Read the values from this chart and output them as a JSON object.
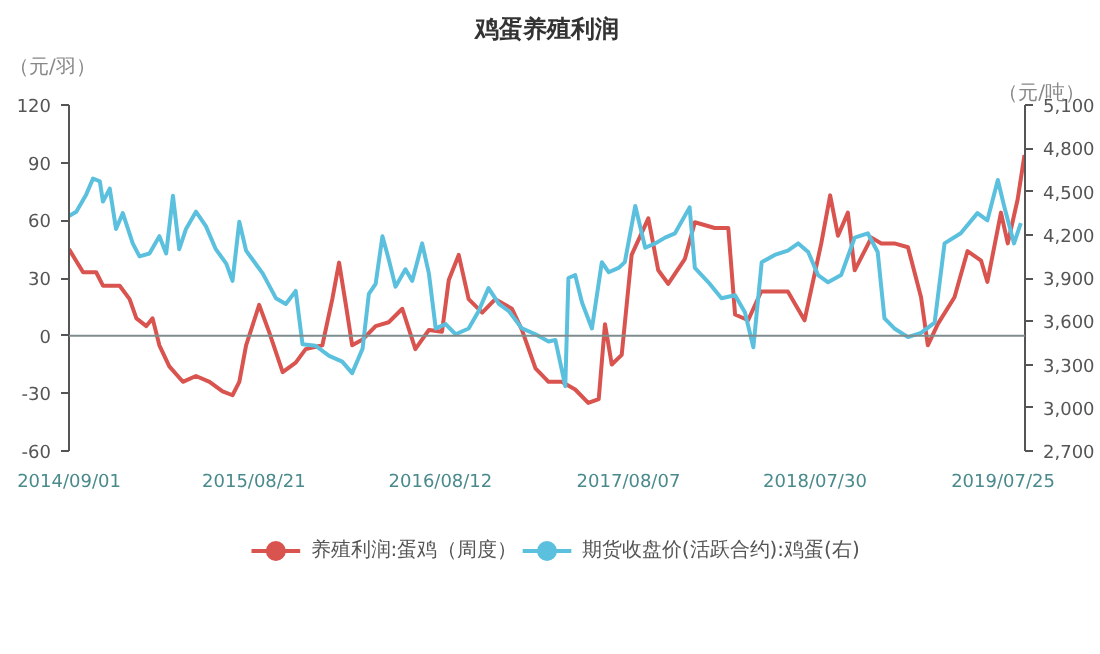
{
  "chart_data": {
    "type": "line",
    "title": "鸡蛋养殖利润",
    "ylabel": "（元/羽）",
    "y2label": "（元/吨）",
    "xlim": [
      "2014-09-01",
      "2019-09-05"
    ],
    "xticks": [
      {
        "value": "2014-09-01",
        "label": "2014/09/01"
      },
      {
        "value": "2015-08-21",
        "label": "2015/08/21"
      },
      {
        "value": "2016-08-12",
        "label": "2016/08/12"
      },
      {
        "value": "2017-08-07",
        "label": "2017/08/07"
      },
      {
        "value": "2018-07-30",
        "label": "2018/07/30"
      },
      {
        "value": "2019-07-25",
        "label": "2019/07/25"
      }
    ],
    "ylim": [
      -60,
      120
    ],
    "yticks": [
      -60,
      -30,
      0,
      30,
      60,
      90,
      120
    ],
    "y2lim": [
      2700,
      5100
    ],
    "y2ticks": [
      {
        "value": 2700,
        "label": "2,700"
      },
      {
        "value": 3000,
        "label": "3,000"
      },
      {
        "value": 3300,
        "label": "3,300"
      },
      {
        "value": 3600,
        "label": "3,600"
      },
      {
        "value": 3900,
        "label": "3,900"
      },
      {
        "value": 4200,
        "label": "4,200"
      },
      {
        "value": 4500,
        "label": "4,500"
      },
      {
        "value": 4800,
        "label": "4,800"
      },
      {
        "value": 5100,
        "label": "5,100"
      }
    ],
    "ref_lines": [
      {
        "axis": "y",
        "value": 0,
        "color": "#7f8c8d"
      }
    ],
    "legend": "bottom",
    "grid": false,
    "series": [
      {
        "name": "养殖利润:蛋鸡（周度）",
        "color": "#d9534f",
        "x": [
          "2014-09-01",
          "2014-09-28",
          "2014-10-23",
          "2014-11-05",
          "2014-12-07",
          "2014-12-26",
          "2015-01-08",
          "2015-01-27",
          "2015-02-08",
          "2015-02-21",
          "2015-03-12",
          "2015-04-07",
          "2015-05-02",
          "2015-05-28",
          "2015-06-22",
          "2015-07-11",
          "2015-07-24",
          "2015-08-06",
          "2015-08-31",
          "2015-09-19",
          "2015-10-15",
          "2015-11-09",
          "2015-11-28",
          "2015-12-30",
          "2016-01-18",
          "2016-01-31",
          "2016-02-13",
          "2016-02-25",
          "2016-03-16",
          "2016-04-10",
          "2016-05-05",
          "2016-05-31",
          "2016-06-25",
          "2016-07-21",
          "2016-08-15",
          "2016-08-28",
          "2016-09-16",
          "2016-10-05",
          "2016-10-31",
          "2016-11-25",
          "2016-12-27",
          "2017-01-15",
          "2017-02-10",
          "2017-03-07",
          "2017-04-01",
          "2017-04-27",
          "2017-05-22",
          "2017-06-11",
          "2017-06-23",
          "2017-07-06",
          "2017-07-25",
          "2017-08-13",
          "2017-09-14",
          "2017-10-03",
          "2017-10-22",
          "2017-11-23",
          "2017-12-12",
          "2018-01-19",
          "2018-02-14",
          "2018-02-27",
          "2018-03-24",
          "2018-04-18",
          "2018-06-08",
          "2018-07-10",
          "2018-08-11",
          "2018-08-28",
          "2018-09-12",
          "2018-10-01",
          "2018-10-14",
          "2018-11-15",
          "2018-12-04",
          "2018-12-29",
          "2019-01-24",
          "2019-02-18",
          "2019-03-03",
          "2019-03-22",
          "2019-04-23",
          "2019-05-18",
          "2019-06-13",
          "2019-06-25",
          "2019-07-21",
          "2019-08-03",
          "2019-08-22",
          "2019-09-04"
        ],
        "values": [
          45,
          33,
          33,
          26,
          26,
          19,
          9,
          5,
          9,
          -5,
          -16,
          -24,
          -21,
          -24,
          -29,
          -31,
          -24,
          -5,
          16,
          2,
          -19,
          -14,
          -7,
          -5,
          19,
          38,
          16,
          -5,
          -2,
          5,
          7,
          14,
          -7,
          3,
          2,
          29,
          42,
          19,
          12,
          19,
          14,
          3,
          -17,
          -24,
          -24,
          -28,
          -35,
          -33,
          6,
          -15,
          -10,
          42,
          61,
          34,
          27,
          40,
          59,
          56,
          56,
          11,
          8,
          23,
          23,
          8,
          48,
          73,
          52,
          64,
          34,
          51,
          48,
          48,
          46,
          20,
          -5,
          6,
          20,
          44,
          39,
          28,
          64,
          48,
          71,
          94
        ]
      },
      {
        "name": "期货收盘价(活跃合约):鸡蛋(右)",
        "color": "#5bc0de",
        "axis": "y2",
        "x": [
          "2014-09-01",
          "2014-09-15",
          "2014-10-04",
          "2014-10-17",
          "2014-10-30",
          "2014-11-05",
          "2014-11-18",
          "2014-11-30",
          "2014-12-13",
          "2015-01-01",
          "2015-01-14",
          "2015-02-02",
          "2015-02-21",
          "2015-03-06",
          "2015-03-19",
          "2015-03-31",
          "2015-04-13",
          "2015-05-02",
          "2015-05-21",
          "2015-06-09",
          "2015-06-29",
          "2015-07-11",
          "2015-07-24",
          "2015-08-06",
          "2015-08-18",
          "2015-09-07",
          "2015-10-02",
          "2015-10-21",
          "2015-11-09",
          "2015-11-22",
          "2015-12-17",
          "2016-01-12",
          "2016-02-06",
          "2016-02-25",
          "2016-03-16",
          "2016-03-28",
          "2016-04-10",
          "2016-04-23",
          "2016-05-05",
          "2016-05-18",
          "2016-06-06",
          "2016-06-19",
          "2016-07-08",
          "2016-07-21",
          "2016-08-03",
          "2016-08-22",
          "2016-09-10",
          "2016-10-05",
          "2016-10-24",
          "2016-11-12",
          "2016-12-02",
          "2016-12-21",
          "2017-01-15",
          "2017-02-10",
          "2017-03-07",
          "2017-03-20",
          "2017-04-08",
          "2017-04-14",
          "2017-04-27",
          "2017-05-10",
          "2017-05-29",
          "2017-06-17",
          "2017-06-30",
          "2017-07-19",
          "2017-07-31",
          "2017-08-20",
          "2017-09-08",
          "2017-09-27",
          "2017-10-16",
          "2017-11-04",
          "2017-12-02",
          "2017-12-12",
          "2018-01-07",
          "2018-02-01",
          "2018-02-27",
          "2018-03-18",
          "2018-04-03",
          "2018-04-19",
          "2018-05-14",
          "2018-06-08",
          "2018-06-28",
          "2018-07-17",
          "2018-08-05",
          "2018-08-24",
          "2018-09-18",
          "2018-10-14",
          "2018-11-08",
          "2018-11-27",
          "2018-12-10",
          "2018-12-29",
          "2019-01-24",
          "2019-02-18",
          "2019-03-16",
          "2019-04-04",
          "2019-05-05",
          "2019-06-06",
          "2019-06-25",
          "2019-07-15",
          "2019-07-27",
          "2019-08-15",
          "2019-08-28"
        ],
        "values": [
          4330,
          4360,
          4480,
          4590,
          4570,
          4430,
          4520,
          4240,
          4350,
          4140,
          4050,
          4070,
          4190,
          4070,
          4470,
          4100,
          4240,
          4360,
          4260,
          4100,
          4000,
          3880,
          4290,
          4090,
          4030,
          3930,
          3760,
          3720,
          3810,
          3440,
          3430,
          3360,
          3320,
          3240,
          3410,
          3790,
          3860,
          4190,
          4030,
          3840,
          3960,
          3880,
          4140,
          3930,
          3550,
          3580,
          3510,
          3550,
          3670,
          3830,
          3720,
          3670,
          3550,
          3510,
          3460,
          3470,
          3150,
          3900,
          3920,
          3730,
          3550,
          4010,
          3940,
          3970,
          4010,
          4400,
          4110,
          4140,
          4180,
          4210,
          4390,
          3970,
          3870,
          3760,
          3780,
          3660,
          3420,
          4010,
          4060,
          4090,
          4140,
          4080,
          3920,
          3870,
          3920,
          4180,
          4210,
          4080,
          3620,
          3550,
          3490,
          3520,
          3590,
          4140,
          4210,
          4350,
          4300,
          4580,
          4400,
          4140,
          4280
        ]
      }
    ]
  }
}
